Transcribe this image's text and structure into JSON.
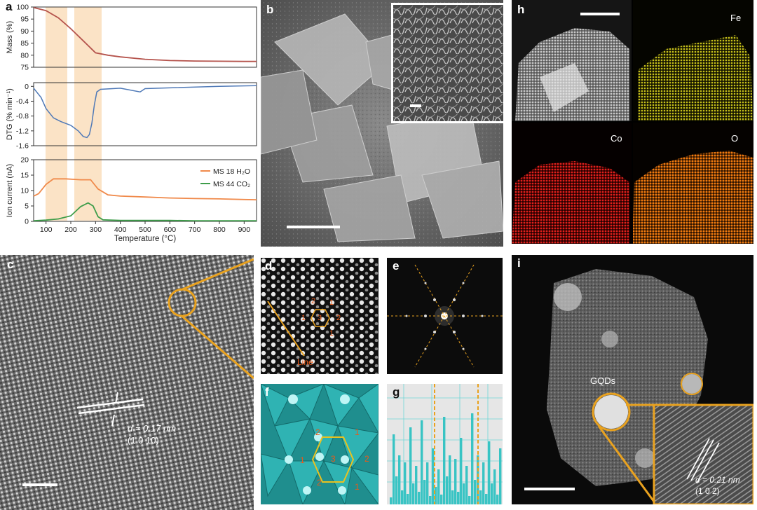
{
  "figure": {
    "panel_labels": [
      "a",
      "b",
      "c",
      "d",
      "e",
      "f",
      "g",
      "h",
      "i"
    ],
    "colors": {
      "mass_curve": "#b5534c",
      "dtg_curve": "#4f79b7",
      "h2o_curve": "#f08a4b",
      "co2_curve": "#3e9d4a",
      "shade": "#fbe3c6",
      "highlight": "#e9a21f",
      "fe_map": "#e8e020",
      "co_map": "#e0201c",
      "o_map": "#f07a10",
      "cyan": "#39c4c4"
    }
  },
  "panel_a": {
    "xlabel": "Temperature (°C)",
    "xticks": [
      "100",
      "200",
      "300",
      "400",
      "500",
      "600",
      "700",
      "800",
      "900"
    ],
    "top": {
      "ylabel": "Mass (%)",
      "yticks": [
        "100",
        "95",
        "90",
        "85",
        "80",
        "75"
      ]
    },
    "mid": {
      "ylabel": "DTG (% min⁻¹)",
      "yticks": [
        "0",
        "-0.4",
        "-0.8",
        "-1.2",
        "-1.6"
      ]
    },
    "bot": {
      "ylabel": "Ion current (nA)",
      "yticks": [
        "20",
        "15",
        "10",
        "5",
        "0"
      ],
      "legend": [
        "MS 18 H₂O",
        "MS 44 CO₂"
      ]
    }
  },
  "chart_data": [
    {
      "type": "line",
      "title": "",
      "xlabel": "Temperature (°C)",
      "ylabel": "Mass (%)",
      "xlim": [
        50,
        950
      ],
      "ylim": [
        75,
        100
      ],
      "series": [
        {
          "x": [
            50,
            100,
            150,
            200,
            250,
            300,
            350,
            400,
            500,
            600,
            700,
            800,
            900,
            950
          ],
          "values": [
            99.8,
            98.5,
            95.5,
            91,
            86,
            81,
            80,
            79.3,
            78.3,
            77.8,
            77.6,
            77.5,
            77.4,
            77.4
          ]
        }
      ]
    },
    {
      "type": "line",
      "title": "",
      "xlabel": "Temperature (°C)",
      "ylabel": "DTG (% min⁻¹)",
      "xlim": [
        50,
        950
      ],
      "ylim": [
        -1.6,
        0.1
      ],
      "series": [
        {
          "x": [
            50,
            80,
            100,
            130,
            160,
            200,
            230,
            250,
            265,
            275,
            285,
            295,
            305,
            320,
            400,
            480,
            500,
            600,
            800,
            950
          ],
          "values": [
            -0.05,
            -0.3,
            -0.6,
            -0.85,
            -0.95,
            -1.05,
            -1.2,
            -1.35,
            -1.38,
            -1.3,
            -1.0,
            -0.5,
            -0.15,
            -0.08,
            -0.05,
            -0.15,
            -0.06,
            -0.04,
            0.0,
            0.02
          ]
        }
      ]
    },
    {
      "type": "line",
      "title": "",
      "xlabel": "Temperature (°C)",
      "ylabel": "Ion current (nA)",
      "xlim": [
        50,
        950
      ],
      "ylim": [
        0,
        20
      ],
      "series": [
        {
          "name": "MS 18 H₂O",
          "x": [
            50,
            70,
            100,
            130,
            180,
            240,
            280,
            310,
            350,
            400,
            500,
            600,
            700,
            800,
            900,
            950
          ],
          "values": [
            8.2,
            9,
            12,
            13.8,
            13.8,
            13.5,
            13.5,
            10.5,
            8.6,
            8.2,
            7.9,
            7.6,
            7.4,
            7.3,
            7.1,
            7
          ]
        },
        {
          "name": "MS 44 CO₂",
          "x": [
            50,
            100,
            150,
            200,
            240,
            270,
            290,
            310,
            330,
            400,
            500,
            600,
            700,
            800,
            900,
            950
          ],
          "values": [
            0.2,
            0.4,
            0.8,
            1.8,
            4.8,
            6,
            5,
            1.5,
            0.5,
            0.3,
            0.3,
            0.3,
            0.2,
            0.2,
            0.2,
            0.2
          ]
        }
      ]
    },
    {
      "type": "bar",
      "title": "",
      "xlabel": "",
      "ylabel": "",
      "categories": [],
      "values": []
    }
  ],
  "panel_c": {
    "annotation_d": "d = 0.17 nm",
    "annotation_plane": "(1 0 10)"
  },
  "panel_d": {
    "line_label": "Line",
    "site_labels": [
      "1",
      "2",
      "3",
      "1",
      "2",
      "1"
    ]
  },
  "panel_f": {
    "site_labels": [
      "1",
      "2",
      "1",
      "2",
      "3",
      "2",
      "1",
      "2",
      "1"
    ]
  },
  "panel_h": {
    "elements": [
      "Fe",
      "Co",
      "O"
    ]
  },
  "panel_i": {
    "gqd_label": "GQDs",
    "annotation_d": "d = 0.21 nm",
    "annotation_plane": "(1 0 2)"
  }
}
